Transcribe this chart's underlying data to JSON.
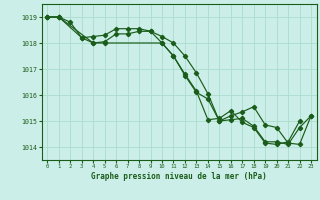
{
  "background_color": "#cceee8",
  "grid_color": "#aaddcc",
  "line_color": "#1a5c1a",
  "title": "Graphe pression niveau de la mer (hPa)",
  "xlim": [
    -0.5,
    23.5
  ],
  "ylim": [
    1013.5,
    1019.5
  ],
  "yticks": [
    1014,
    1015,
    1016,
    1017,
    1018,
    1019
  ],
  "xticks": [
    0,
    1,
    2,
    3,
    4,
    5,
    6,
    7,
    8,
    9,
    10,
    11,
    12,
    13,
    14,
    15,
    16,
    17,
    18,
    19,
    20,
    21,
    22,
    23
  ],
  "line1_x": [
    0,
    1,
    2,
    3,
    4,
    5,
    6,
    7,
    8,
    9,
    10,
    11,
    12,
    13,
    14,
    15,
    16,
    17,
    18,
    19,
    20,
    21,
    22,
    23
  ],
  "line1_y": [
    1019.0,
    1019.0,
    1018.8,
    1018.2,
    1018.25,
    1018.3,
    1018.55,
    1018.55,
    1018.55,
    1018.45,
    1018.25,
    1018.0,
    1017.5,
    1016.85,
    1016.05,
    1015.0,
    1015.2,
    1015.35,
    1015.55,
    1014.85,
    1014.75,
    1014.15,
    1014.1,
    1015.2
  ],
  "line2_x": [
    0,
    1,
    3,
    4,
    5,
    6,
    7,
    8,
    9,
    10,
    11,
    12,
    13,
    14,
    15,
    16,
    17,
    18,
    19,
    20,
    21,
    22
  ],
  "line2_y": [
    1019.0,
    1019.0,
    1018.2,
    1018.0,
    1018.05,
    1018.35,
    1018.35,
    1018.45,
    1018.45,
    1018.0,
    1017.5,
    1016.8,
    1016.15,
    1015.05,
    1015.1,
    1015.4,
    1014.95,
    1014.75,
    1014.15,
    1014.1,
    1014.2,
    1015.0
  ],
  "line3_x": [
    0,
    1,
    4,
    5,
    10,
    11,
    12,
    13,
    14,
    15,
    16,
    17,
    18,
    19,
    20,
    21,
    22,
    23
  ],
  "line3_y": [
    1019.0,
    1019.0,
    1018.0,
    1018.0,
    1018.0,
    1017.5,
    1016.75,
    1016.1,
    1015.85,
    1015.0,
    1015.05,
    1015.1,
    1014.8,
    1014.2,
    1014.2,
    1014.1,
    1014.75,
    1015.2
  ]
}
